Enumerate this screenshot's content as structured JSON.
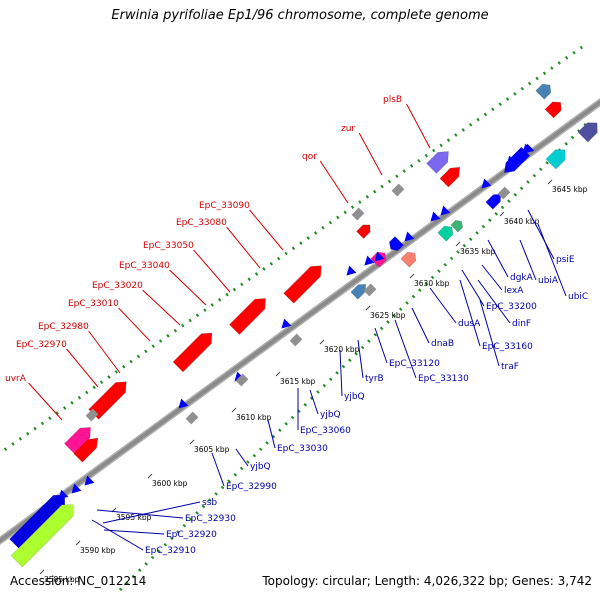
{
  "title": "Erwinia pyrifoliae Ep1/96 chromosome, complete genome",
  "accession": "Accession: NC_012214",
  "summary": "Topology: circular; Length: 4,026,322 bp; Genes: 3,742",
  "colors": {
    "forward_gene": "#ff0000",
    "reverse_gene": "#0000ff",
    "forward_label": "#d40000",
    "reverse_label": "#0000aa",
    "backbone": "#8a8a8a",
    "guide_dots": "#228b22"
  },
  "scale": {
    "unit": "kbp",
    "ticks": [
      {
        "kbp": 3585,
        "label": "3585 kbp",
        "faint": true
      },
      {
        "kbp": 3590,
        "label": "3590 kbp"
      },
      {
        "kbp": 3595,
        "label": "3595 kbp"
      },
      {
        "kbp": 3600,
        "label": "3600 kbp"
      },
      {
        "kbp": 3605,
        "label": "3605 kbp"
      },
      {
        "kbp": 3610,
        "label": "3610 kbp"
      },
      {
        "kbp": 3615,
        "label": "3615 kbp"
      },
      {
        "kbp": 3620,
        "label": "3620 kbp"
      },
      {
        "kbp": 3625,
        "label": "3625 kbp"
      },
      {
        "kbp": 3630,
        "label": "3630 kbp"
      },
      {
        "kbp": 3635,
        "label": "3635 kbp"
      },
      {
        "kbp": 3640,
        "label": "3640 kbp"
      },
      {
        "kbp": 3645,
        "label": "3645 kbp"
      }
    ]
  },
  "forward_labels": [
    "uvrA",
    "EpC_32970",
    "EpC_32980",
    "EpC_33010",
    "EpC_33020",
    "EpC_33040",
    "EpC_33050",
    "EpC_33080",
    "EpC_33090",
    "qor",
    "zur",
    "plsB"
  ],
  "reverse_labels": [
    "ssb",
    "EpC_32930",
    "EpC_32920",
    "EpC_32910",
    "EpC_32990",
    "yjbQ",
    "EpC_33030",
    "EpC_33060",
    "yjbQ",
    "yjbQ",
    "tyrB",
    "EpC_33120",
    "EpC_33130",
    "dnaB",
    "dusA",
    "EpC_33160",
    "traF",
    "EpC_33200",
    "dinF",
    "lexA",
    "dgkA",
    "ubiA",
    "psiE",
    "ubiC"
  ]
}
